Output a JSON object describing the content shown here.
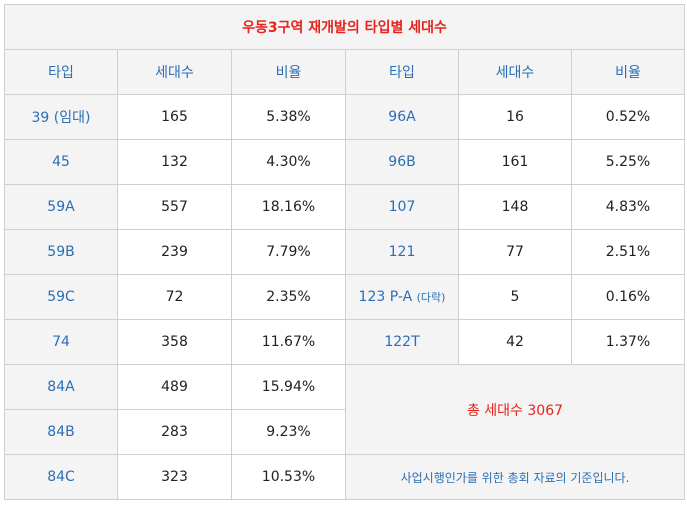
{
  "title": "우동3구역 재개발의 타입별 세대수",
  "headers": [
    "타입",
    "세대수",
    "비율",
    "타입",
    "세대수",
    "비율"
  ],
  "left_rows": [
    {
      "type": "39 (임대)",
      "units": "165",
      "ratio": "5.38%"
    },
    {
      "type": "45",
      "units": "132",
      "ratio": "4.30%"
    },
    {
      "type": "59A",
      "units": "557",
      "ratio": "18.16%"
    },
    {
      "type": "59B",
      "units": "239",
      "ratio": "7.79%"
    },
    {
      "type": "59C",
      "units": "72",
      "ratio": "2.35%"
    },
    {
      "type": "74",
      "units": "358",
      "ratio": "11.67%"
    },
    {
      "type": "84A",
      "units": "489",
      "ratio": "15.94%"
    },
    {
      "type": "84B",
      "units": "283",
      "ratio": "9.23%"
    },
    {
      "type": "84C",
      "units": "323",
      "ratio": "10.53%"
    }
  ],
  "right_rows": [
    {
      "type": "96A",
      "type_note": "",
      "units": "16",
      "ratio": "0.52%"
    },
    {
      "type": "96B",
      "type_note": "",
      "units": "161",
      "ratio": "5.25%"
    },
    {
      "type": "107",
      "type_note": "",
      "units": "148",
      "ratio": "4.83%"
    },
    {
      "type": "121",
      "type_note": "",
      "units": "77",
      "ratio": "2.51%"
    },
    {
      "type": "123 P-A",
      "type_note": "(다락)",
      "units": "5",
      "ratio": "0.16%"
    },
    {
      "type": "122T",
      "type_note": "",
      "units": "42",
      "ratio": "1.37%"
    }
  ],
  "total": "총 세대수 3067",
  "note": "사업시행인가를 위한 총회 자료의 기준입니다.",
  "colors": {
    "accent_red": "#e8231c",
    "accent_blue": "#2a6fb5",
    "header_bg": "#f4f4f4",
    "border": "#cfcfcf"
  }
}
